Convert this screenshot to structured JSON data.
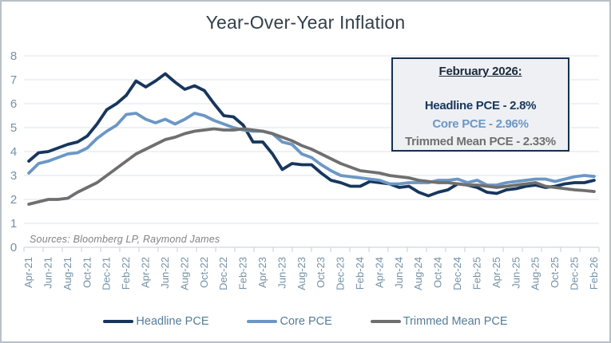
{
  "title": "Year-Over-Year Inflation",
  "sources": "Sources: Bloomberg LP, Raymond James",
  "annotation": {
    "title": "February 2026:",
    "lines": [
      {
        "text": "Headline PCE - 2.8%",
        "color": "#17365D"
      },
      {
        "text": "Core PCE - 2.96%",
        "color": "#6B97C5"
      },
      {
        "text": "Trimmed Mean PCE - 2.33%",
        "color": "#6F6F6F"
      }
    ],
    "border_color": "#16304F",
    "background": "#EEF0F3"
  },
  "colors": {
    "axis_text": "#7491A6",
    "gridline": "#DCE3EB",
    "axis_line": "#C3CFDA",
    "title_text": "#333F4A",
    "sources_text": "#828282",
    "legend_text": "#547C99",
    "frame_border": "#B9BFC7"
  },
  "chart_data": {
    "type": "line",
    "title": "Year-Over-Year Inflation",
    "frequency": "monthly",
    "x_start": "Apr-21",
    "x_end": "Feb-26",
    "x_tick_labels": [
      "Apr-21",
      "Jun-21",
      "Aug-21",
      "Oct-21",
      "Dec-21",
      "Feb-22",
      "Apr-22",
      "Jun-22",
      "Aug-22",
      "Oct-22",
      "Dec-22",
      "Feb-23",
      "Apr-23",
      "Jun-23",
      "Aug-23",
      "Oct-23",
      "Dec-23",
      "Feb-24",
      "Apr-24",
      "Jun-24",
      "Aug-24",
      "Oct-24",
      "Dec-24",
      "Feb-25",
      "Apr-25",
      "Jun-25",
      "Aug-25",
      "Oct-25",
      "Dec-25",
      "Feb-26"
    ],
    "ylim": [
      0,
      8
    ],
    "y_ticks": [
      0,
      1,
      2,
      3,
      4,
      5,
      6,
      7,
      8
    ],
    "grid": true,
    "legend_position": "bottom",
    "series": [
      {
        "name": "Headline PCE",
        "color": "#17365D",
        "values": [
          3.6,
          3.95,
          4.0,
          4.15,
          4.3,
          4.4,
          4.65,
          5.15,
          5.75,
          6.0,
          6.35,
          6.95,
          6.7,
          6.95,
          7.25,
          6.9,
          6.6,
          6.75,
          6.55,
          6.0,
          5.5,
          5.45,
          5.1,
          4.4,
          4.4,
          3.9,
          3.25,
          3.5,
          3.45,
          3.45,
          3.1,
          2.8,
          2.7,
          2.55,
          2.55,
          2.75,
          2.7,
          2.65,
          2.5,
          2.55,
          2.3,
          2.15,
          2.3,
          2.4,
          2.65,
          2.6,
          2.5,
          2.3,
          2.25,
          2.4,
          2.45,
          2.55,
          2.6,
          2.5,
          2.55,
          2.65,
          2.7,
          2.7,
          2.8
        ]
      },
      {
        "name": "Core PCE",
        "color": "#6B97C5",
        "values": [
          3.1,
          3.5,
          3.6,
          3.75,
          3.9,
          3.95,
          4.15,
          4.55,
          4.85,
          5.1,
          5.55,
          5.6,
          5.35,
          5.2,
          5.35,
          5.15,
          5.35,
          5.6,
          5.5,
          5.3,
          5.15,
          5.0,
          4.9,
          4.85,
          4.85,
          4.75,
          4.4,
          4.3,
          3.9,
          3.75,
          3.45,
          3.2,
          3.0,
          2.95,
          2.9,
          2.85,
          2.8,
          2.65,
          2.65,
          2.7,
          2.7,
          2.7,
          2.8,
          2.8,
          2.85,
          2.7,
          2.8,
          2.6,
          2.6,
          2.7,
          2.75,
          2.8,
          2.85,
          2.85,
          2.75,
          2.85,
          2.95,
          3.0,
          2.96
        ]
      },
      {
        "name": "Trimmed Mean PCE",
        "color": "#6F6F6F",
        "values": [
          1.8,
          1.9,
          2.0,
          2.0,
          2.05,
          2.3,
          2.5,
          2.7,
          3.0,
          3.3,
          3.6,
          3.9,
          4.1,
          4.3,
          4.5,
          4.6,
          4.75,
          4.85,
          4.9,
          4.95,
          4.9,
          4.9,
          4.95,
          4.9,
          4.85,
          4.75,
          4.6,
          4.45,
          4.25,
          4.1,
          3.9,
          3.7,
          3.5,
          3.35,
          3.2,
          3.15,
          3.1,
          3.0,
          2.95,
          2.9,
          2.8,
          2.75,
          2.7,
          2.7,
          2.65,
          2.6,
          2.6,
          2.55,
          2.5,
          2.55,
          2.6,
          2.65,
          2.7,
          2.55,
          2.5,
          2.45,
          2.4,
          2.37,
          2.33
        ]
      }
    ]
  }
}
